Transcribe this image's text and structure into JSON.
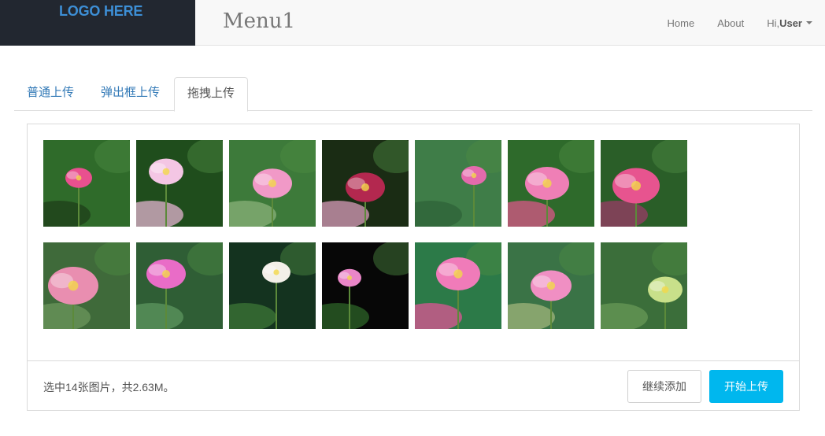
{
  "header": {
    "logo_text": "LOGO HERE",
    "menu_title": "Menu1",
    "nav": [
      {
        "label": "Home"
      },
      {
        "label": "About"
      }
    ],
    "user_greeting": "Hi,",
    "user_name": "User"
  },
  "tabs": [
    {
      "label": "普通上传",
      "active": false
    },
    {
      "label": "弹出框上传",
      "active": false
    },
    {
      "label": "拖拽上传",
      "active": true
    }
  ],
  "uploader": {
    "status_text": "选中14张图片，共2.63M。",
    "continue_label": "继续添加",
    "start_label": "开始上传",
    "accent_color": "#00b7ee"
  },
  "thumbnails": [
    {
      "name": "lotus-photo"
    },
    {
      "name": "lotus-photo"
    },
    {
      "name": "lotus-photo"
    },
    {
      "name": "lotus-photo"
    },
    {
      "name": "lotus-photo"
    },
    {
      "name": "lotus-photo"
    },
    {
      "name": "lotus-photo"
    },
    {
      "name": "lotus-photo"
    },
    {
      "name": "lotus-photo"
    },
    {
      "name": "lotus-photo"
    },
    {
      "name": "lotus-photo"
    },
    {
      "name": "lotus-photo"
    },
    {
      "name": "lotus-photo"
    },
    {
      "name": "lotus-photo"
    }
  ]
}
